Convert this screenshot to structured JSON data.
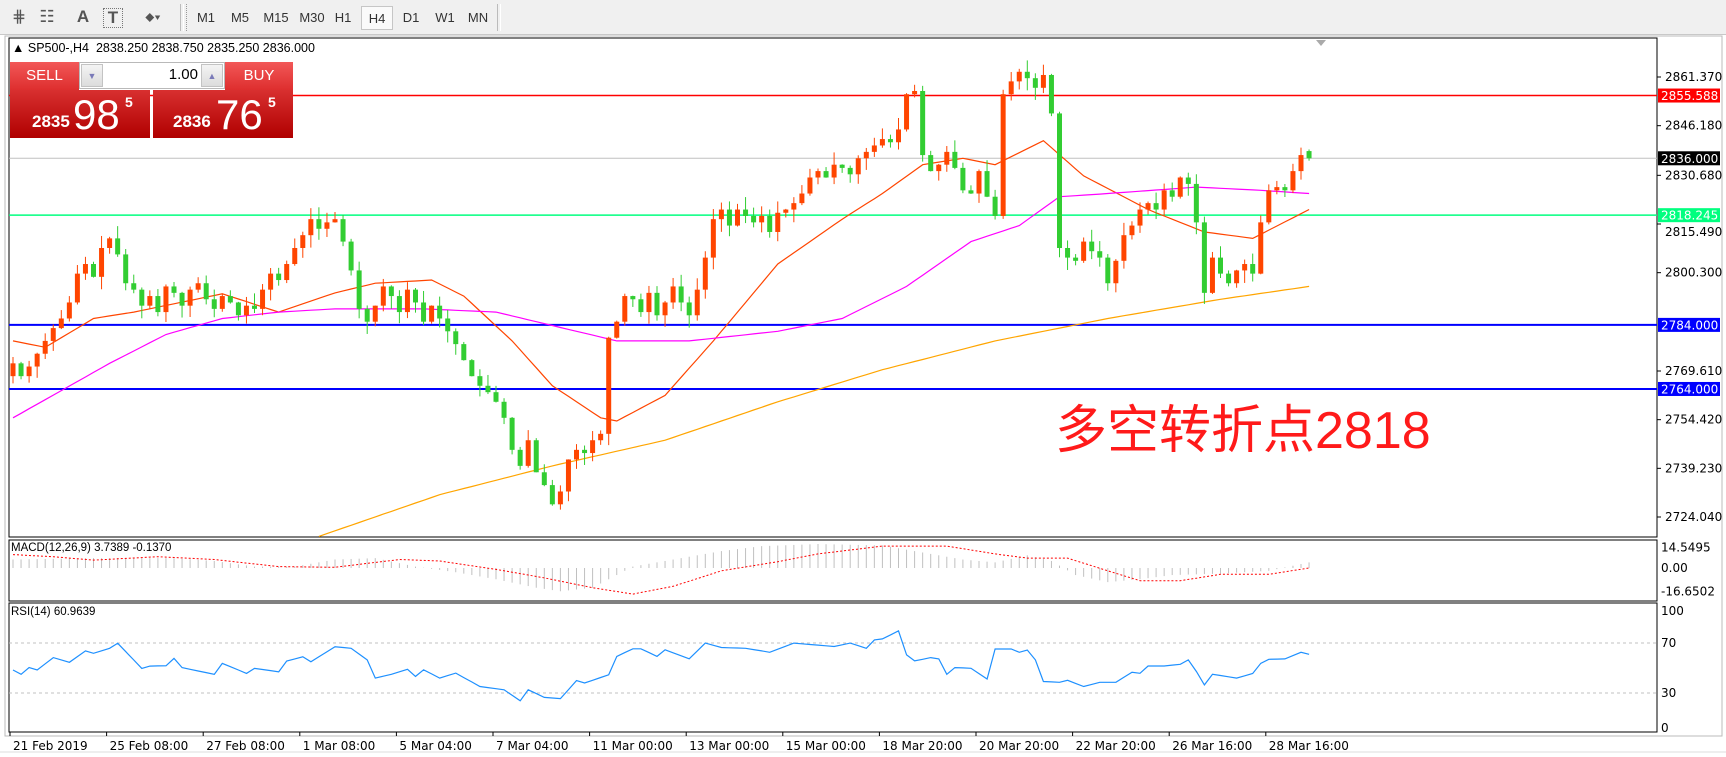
{
  "toolbar": {
    "tools": [
      {
        "icon": "fibonacci-expansion-icon",
        "glyph": "⋕"
      },
      {
        "icon": "fibonacci-fan-icon",
        "glyph": "☷"
      },
      {
        "icon": "text-icon",
        "glyph": "A"
      },
      {
        "icon": "text-label-icon",
        "glyph": "T"
      },
      {
        "icon": "arrows-dropdown-icon",
        "glyph": "⬥▾"
      }
    ],
    "timeframes": [
      "M1",
      "M5",
      "M15",
      "M30",
      "H1",
      "H4",
      "D1",
      "W1",
      "MN"
    ],
    "active_timeframe": "H4"
  },
  "legend": {
    "symbol": "SP500-,H4",
    "ohlc": "2838.250 2838.750 2835.250 2836.000"
  },
  "trade_panel": {
    "sell_label": "SELL",
    "buy_label": "BUY",
    "lot": "1.00",
    "sell_price": {
      "prefix": "2835",
      "big": "98",
      "sup": "5"
    },
    "buy_price": {
      "prefix": "2836",
      "big": "76",
      "sup": "5"
    }
  },
  "annotation": "多空转折点2818",
  "colors": {
    "bull": "#ff4500",
    "bear": "#32cd32",
    "ma_fast": "#ff4500",
    "ma_mid": "#ff00ff",
    "ma_slow": "#ffa500",
    "resistance": "#ff0000",
    "pivot": "#00ff7f",
    "support": "#0000ff",
    "current": "#c0c0c0",
    "rsi": "#1e90ff",
    "macd_signal": "#ff0000",
    "macd_hist": "#c0c0c0"
  },
  "chart_data": [
    {
      "type": "candlestick",
      "symbol": "SP500-",
      "timeframe": "H4",
      "ylim": [
        2720,
        2868
      ],
      "y_ticks": [
        "2861.370",
        "2846.180",
        "2830.680",
        "2815.490",
        "2800.300",
        "2769.610",
        "2754.420",
        "2739.230",
        "2724.040"
      ],
      "x_tick_labels": [
        "21 Feb 2019",
        "25 Feb 08:00",
        "27 Feb 08:00",
        "1 Mar 08:00",
        "5 Mar 04:00",
        "7 Mar 04:00",
        "11 Mar 00:00",
        "13 Mar 00:00",
        "15 Mar 00:00",
        "18 Mar 20:00",
        "20 Mar 20:00",
        "22 Mar 20:00",
        "26 Mar 16:00",
        "28 Mar 16:00"
      ],
      "closes": [
        2772,
        2768,
        2771,
        2775,
        2779,
        2783,
        2786,
        2791,
        2800,
        2803,
        2799,
        2808,
        2811,
        2806,
        2797,
        2795,
        2790,
        2793,
        2788,
        2796,
        2794,
        2790,
        2795,
        2797,
        2792,
        2789,
        2793,
        2791,
        2787,
        2790,
        2789,
        2795,
        2800,
        2798,
        2803,
        2808,
        2812,
        2817,
        2814,
        2816,
        2817,
        2810,
        2801,
        2789,
        2785,
        2790,
        2796,
        2793,
        2788,
        2795,
        2791,
        2785,
        2790,
        2786,
        2782,
        2778,
        2773,
        2768,
        2765,
        2763,
        2760,
        2755,
        2745,
        2740,
        2748,
        2738,
        2734,
        2728,
        2732,
        2742,
        2745,
        2744,
        2748,
        2750,
        2780,
        2785,
        2793,
        2792,
        2788,
        2794,
        2787,
        2791,
        2796,
        2791,
        2787,
        2795,
        2805,
        2817,
        2820,
        2815,
        2820,
        2818,
        2816,
        2818,
        2813,
        2819,
        2820,
        2822,
        2825,
        2830,
        2832,
        2830,
        2834,
        2833,
        2831,
        2836,
        2838,
        2840,
        2842,
        2841,
        2845,
        2856,
        2857,
        2837,
        2832,
        2834,
        2838,
        2833,
        2826,
        2825,
        2832,
        2824,
        2818,
        2856,
        2860,
        2863,
        2861,
        2858,
        2862,
        2850,
        2808,
        2805,
        2804,
        2810,
        2807,
        2805,
        2797,
        2804,
        2812,
        2815,
        2820,
        2822,
        2820,
        2826,
        2824,
        2830,
        2828,
        2816,
        2794,
        2805,
        2800,
        2797,
        2801,
        2803,
        2800,
        2816,
        2826,
        2827,
        2826,
        2832,
        2837,
        2836
      ],
      "last_bar": {
        "open": 2838.25,
        "high": 2838.75,
        "low": 2835.25,
        "close": 2836.0
      },
      "moving_averages": [
        {
          "role": "fast",
          "points": [
            [
              0,
              2779
            ],
            [
              4,
              2777
            ],
            [
              10,
              2786
            ],
            [
              15,
              2788
            ],
            [
              26,
              2793.7
            ],
            [
              33,
              2788
            ],
            [
              40,
              2794
            ],
            [
              45,
              2797
            ],
            [
              52,
              2798
            ],
            [
              56,
              2793
            ],
            [
              62,
              2779
            ],
            [
              67,
              2765
            ],
            [
              73,
              2755
            ],
            [
              75,
              2754
            ],
            [
              81,
              2762
            ],
            [
              87,
              2779
            ],
            [
              95,
              2803
            ],
            [
              103,
              2817
            ],
            [
              108,
              2825
            ],
            [
              113,
              2834
            ],
            [
              118,
              2836
            ],
            [
              122,
              2834
            ],
            [
              128,
              2841.5
            ],
            [
              133,
              2830.5
            ],
            [
              141,
              2820
            ],
            [
              148,
              2813
            ],
            [
              154,
              2811
            ],
            [
              161,
              2820
            ]
          ]
        },
        {
          "role": "mid",
          "points": [
            [
              0,
              2755
            ],
            [
              12,
              2772
            ],
            [
              19,
              2781
            ],
            [
              26,
              2786
            ],
            [
              33,
              2788
            ],
            [
              40,
              2789
            ],
            [
              51,
              2789
            ],
            [
              60,
              2788
            ],
            [
              70,
              2782
            ],
            [
              75,
              2779
            ],
            [
              84,
              2779
            ],
            [
              95,
              2782
            ],
            [
              103,
              2786
            ],
            [
              111,
              2796
            ],
            [
              119,
              2810
            ],
            [
              125,
              2815
            ],
            [
              130,
              2824
            ],
            [
              136,
              2825
            ],
            [
              147,
              2827
            ],
            [
              155,
              2826
            ],
            [
              161,
              2825
            ]
          ]
        },
        {
          "role": "slow",
          "points": [
            [
              38,
              2718
            ],
            [
              53,
              2731
            ],
            [
              67,
              2740
            ],
            [
              81,
              2748
            ],
            [
              95,
              2760
            ],
            [
              108,
              2770
            ],
            [
              122,
              2779
            ],
            [
              136,
              2786
            ],
            [
              150,
              2792
            ],
            [
              161,
              2796
            ]
          ]
        }
      ],
      "horizontal_lines": [
        {
          "role": "resistance",
          "price": 2855.588,
          "label": "2855.588"
        },
        {
          "role": "current",
          "price": 2836.0,
          "label": "2836.000"
        },
        {
          "role": "pivot",
          "price": 2818.245,
          "label": "2818.245"
        },
        {
          "role": "support",
          "price": 2784.0,
          "label": "2784.000"
        },
        {
          "role": "support",
          "price": 2764.0,
          "label": "2764.000"
        }
      ]
    },
    {
      "type": "bar",
      "title": "MACD(12,26,9) 3.7389 -0.1370",
      "ylim": [
        -16.6502,
        14.5495
      ],
      "y_ticks": [
        "14.5495",
        "0.00",
        "-16.6502"
      ],
      "histogram_points": [
        [
          0,
          6
        ],
        [
          10,
          7
        ],
        [
          20,
          7
        ],
        [
          25,
          5
        ],
        [
          30,
          1
        ],
        [
          35,
          1
        ],
        [
          40,
          6
        ],
        [
          45,
          7
        ],
        [
          50,
          1
        ],
        [
          55,
          -3
        ],
        [
          60,
          -8
        ],
        [
          65,
          -14
        ],
        [
          68,
          -16.5
        ],
        [
          72,
          -14
        ],
        [
          75,
          -5
        ],
        [
          77,
          1
        ],
        [
          82,
          6
        ],
        [
          88,
          12
        ],
        [
          93,
          15.5
        ],
        [
          100,
          17
        ],
        [
          108,
          16
        ],
        [
          112,
          12
        ],
        [
          118,
          6
        ],
        [
          122,
          4
        ],
        [
          126,
          9
        ],
        [
          129,
          5
        ],
        [
          132,
          -5
        ],
        [
          136,
          -10
        ],
        [
          140,
          -8
        ],
        [
          144,
          -5
        ],
        [
          150,
          -4
        ],
        [
          156,
          -2
        ],
        [
          161,
          4
        ]
      ],
      "signal_points": [
        [
          0,
          9.5
        ],
        [
          5,
          8
        ],
        [
          10,
          5.6
        ],
        [
          18,
          8
        ],
        [
          25,
          6
        ],
        [
          33,
          1
        ],
        [
          40,
          0.5
        ],
        [
          48,
          6
        ],
        [
          53,
          5
        ],
        [
          60,
          -1
        ],
        [
          66,
          -7
        ],
        [
          72,
          -14
        ],
        [
          77,
          -18.5
        ],
        [
          82,
          -13
        ],
        [
          88,
          -2
        ],
        [
          95,
          4.5
        ],
        [
          100,
          10
        ],
        [
          108,
          15.5
        ],
        [
          116,
          15.5
        ],
        [
          122,
          10
        ],
        [
          126,
          7
        ],
        [
          131,
          7
        ],
        [
          136,
          -2
        ],
        [
          140,
          -9
        ],
        [
          145,
          -9
        ],
        [
          150,
          -4.5
        ],
        [
          156,
          -4.5
        ],
        [
          161,
          0
        ]
      ]
    },
    {
      "type": "line",
      "title": "RSI(14) 60.9639",
      "ylim": [
        0,
        100
      ],
      "y_ticks": [
        "100",
        "70",
        "30",
        "0"
      ],
      "levels": [
        70,
        30
      ],
      "points": [
        [
          0,
          48.4
        ],
        [
          1,
          45
        ],
        [
          2,
          50.3
        ],
        [
          3,
          48.4
        ],
        [
          5,
          58.3
        ],
        [
          7,
          54.6
        ],
        [
          9,
          63.7
        ],
        [
          10,
          61.8
        ],
        [
          12,
          65.8
        ],
        [
          13,
          69.8
        ],
        [
          16,
          49.7
        ],
        [
          17,
          51.5
        ],
        [
          19,
          51.8
        ],
        [
          20,
          57.7
        ],
        [
          21,
          50.3
        ],
        [
          23,
          47.6
        ],
        [
          25,
          45
        ],
        [
          26,
          53.7
        ],
        [
          29,
          45.7
        ],
        [
          30,
          49.7
        ],
        [
          33,
          47
        ],
        [
          34,
          55.6
        ],
        [
          36,
          59
        ],
        [
          37,
          55
        ],
        [
          39,
          63
        ],
        [
          40,
          67
        ],
        [
          42,
          65.8
        ],
        [
          44,
          56.5
        ],
        [
          45,
          41.9
        ],
        [
          47,
          45
        ],
        [
          49,
          49
        ],
        [
          50,
          43.3
        ],
        [
          51,
          48.6
        ],
        [
          53,
          41.9
        ],
        [
          55,
          45.9
        ],
        [
          58,
          35.2
        ],
        [
          61,
          32.6
        ],
        [
          63,
          23.8
        ],
        [
          64,
          32.6
        ],
        [
          66,
          26.5
        ],
        [
          68,
          25.5
        ],
        [
          70,
          39.9
        ],
        [
          71,
          38
        ],
        [
          74,
          44.6
        ],
        [
          75,
          59.3
        ],
        [
          77,
          65.4
        ],
        [
          78,
          65.4
        ],
        [
          80,
          59.3
        ],
        [
          81,
          64.6
        ],
        [
          84,
          57.4
        ],
        [
          86,
          69.9
        ],
        [
          88,
          66.4
        ],
        [
          91,
          65.8
        ],
        [
          94,
          62.6
        ],
        [
          97,
          69.9
        ],
        [
          102,
          67.2
        ],
        [
          104,
          69.9
        ],
        [
          106,
          65.8
        ],
        [
          107,
          72.5
        ],
        [
          108,
          73.3
        ],
        [
          110,
          79.7
        ],
        [
          111,
          60.5
        ],
        [
          112,
          55.7
        ],
        [
          114,
          58.3
        ],
        [
          115,
          57.3
        ],
        [
          116,
          45
        ],
        [
          117,
          50.3
        ],
        [
          119,
          49.8
        ],
        [
          121,
          41.2
        ],
        [
          122,
          65.2
        ],
        [
          124,
          65.2
        ],
        [
          125,
          62.6
        ],
        [
          126,
          64.4
        ],
        [
          127,
          56.5
        ],
        [
          128,
          39.2
        ],
        [
          130,
          38.6
        ],
        [
          131,
          40.2
        ],
        [
          133,
          35.2
        ],
        [
          135,
          38.6
        ],
        [
          137,
          38.6
        ],
        [
          139,
          46.6
        ],
        [
          140,
          45.8
        ],
        [
          141,
          51.6
        ],
        [
          143,
          51.6
        ],
        [
          145,
          53
        ],
        [
          146,
          56.5
        ],
        [
          147,
          47.2
        ],
        [
          148,
          36.5
        ],
        [
          149,
          45
        ],
        [
          152,
          41.9
        ],
        [
          154,
          45.6
        ],
        [
          155,
          53.8
        ],
        [
          156,
          57
        ],
        [
          158,
          57.3
        ],
        [
          160,
          62.6
        ],
        [
          161,
          61
        ]
      ]
    }
  ]
}
